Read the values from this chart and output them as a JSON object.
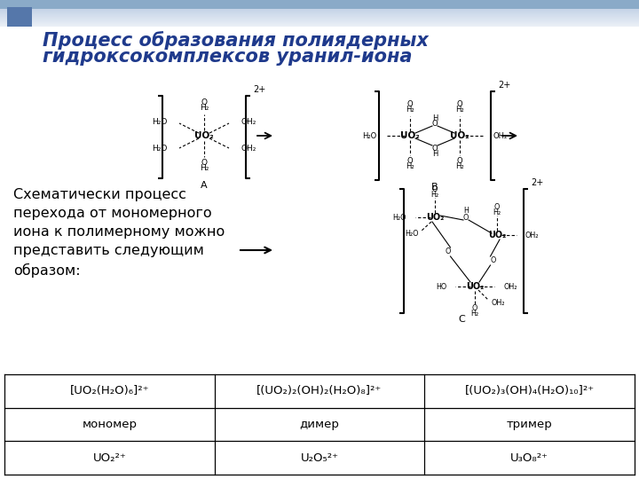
{
  "title_line1": "Процесс образования полиядерных",
  "title_line2": "гидроксокомплексов уранил-иона",
  "title_color": "#1F3A8C",
  "header_color1": "#AABBDD",
  "header_color2": "#DDEEFF",
  "left_text": "Схематически процесс\nперехода от мономерного\nиона к полимерному можно\nпредставить следующим\nобразом:",
  "table_row1": [
    "[UO₂(H₂O)₆]²⁺",
    "[(UO₂)₂(OH)₂(H₂O)₈]²⁺",
    "[(UO₂)₃(OH)₄(H₂O)₁₀]²⁺"
  ],
  "table_row2": [
    "мономер",
    "димер",
    "тример"
  ],
  "table_row3": [
    "UO₂²⁺",
    "U₂O₅²⁺",
    "U₃O₈²⁺"
  ]
}
